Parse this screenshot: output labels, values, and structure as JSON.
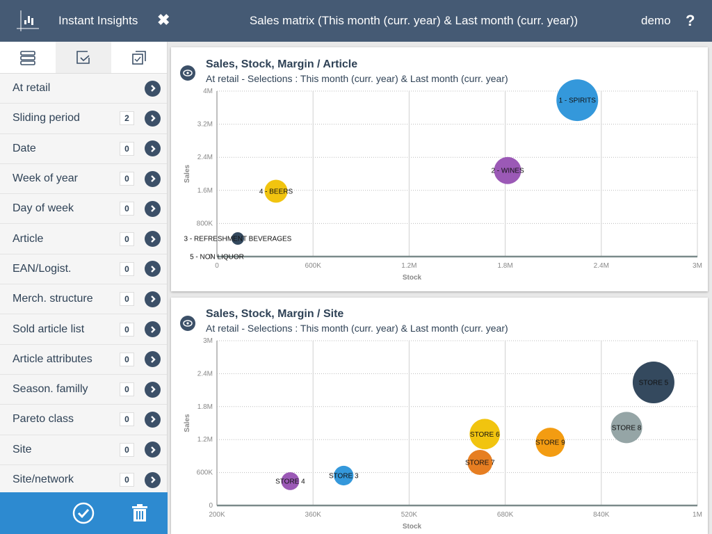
{
  "topbar": {
    "app_title": "Instant Insights",
    "close_symbol": "✖",
    "page_title": "Sales matrix (This month (curr. year) & Last month (curr. year))",
    "user": "demo",
    "help_symbol": "?",
    "logo_icon": "bar-chart-icon"
  },
  "sidebar": {
    "tabs": [
      {
        "name": "list",
        "icon": "stack-icon",
        "active": false
      },
      {
        "name": "selections",
        "icon": "checkbox-icon",
        "active": true
      },
      {
        "name": "multi-selections",
        "icon": "multi-checkbox-icon",
        "active": false
      }
    ],
    "filters": [
      {
        "label": "At retail",
        "count": null
      },
      {
        "label": "Sliding period",
        "count": "2"
      },
      {
        "label": "Date",
        "count": "0"
      },
      {
        "label": "Week of year",
        "count": "0"
      },
      {
        "label": "Day of week",
        "count": "0"
      },
      {
        "label": "Article",
        "count": "0"
      },
      {
        "label": "EAN/Logist.",
        "count": "0"
      },
      {
        "label": "Merch. structure",
        "count": "0"
      },
      {
        "label": "Sold article list",
        "count": "0"
      },
      {
        "label": "Article attributes",
        "count": "0"
      },
      {
        "label": "Season. familly",
        "count": "0"
      },
      {
        "label": "Pareto class",
        "count": "0"
      },
      {
        "label": "Site",
        "count": "0"
      },
      {
        "label": "Site/network",
        "count": "0"
      }
    ],
    "footer": {
      "confirm_icon": "check-circle-icon",
      "delete_icon": "trash-icon"
    }
  },
  "colors": {
    "topbar": "#455a74",
    "accent": "#2d8ad0",
    "dark": "#3c5068"
  },
  "chart_data": [
    {
      "type": "scatter",
      "title": "Sales, Stock, Margin / Article",
      "subtitle": "At retail - Selections : This month (curr. year) & Last month (curr. year)",
      "xlabel": "Stock",
      "ylabel": "Sales",
      "xlim": [
        0,
        3000000
      ],
      "ylim": [
        0,
        4000000
      ],
      "xticks": [
        "0",
        "600K",
        "1.2M",
        "1.8M",
        "2.4M",
        "3M"
      ],
      "yticks": [
        "0",
        "800K",
        "1.6M",
        "2.4M",
        "3.2M",
        "4M"
      ],
      "grid": true,
      "points": [
        {
          "label": "1 - SPIRITS",
          "x": 2250000,
          "y": 3780000,
          "size": 1.0,
          "color": "#3498db"
        },
        {
          "label": "2 - WINES",
          "x": 1815000,
          "y": 2080000,
          "size": 0.65,
          "color": "#9b59b6"
        },
        {
          "label": "3 - REFRESHMENT BEVERAGES",
          "x": 130000,
          "y": 437000,
          "size": 0.3,
          "color": "#34495e"
        },
        {
          "label": "4 - BEERS",
          "x": 369000,
          "y": 1580000,
          "size": 0.55,
          "color": "#f1c40f"
        },
        {
          "label": "5 - NON LIQUOR",
          "x": 0,
          "y": 0,
          "size": 0.0,
          "color": "#95a5a6"
        }
      ]
    },
    {
      "type": "scatter",
      "title": "Sales, Stock, Margin / Site",
      "subtitle": "At retail - Selections : This month (curr. year) & Last month (curr. year)",
      "xlabel": "Stock",
      "ylabel": "Sales",
      "xlim": [
        200000,
        1000000
      ],
      "ylim": [
        0,
        3000000
      ],
      "xticks": [
        "200K",
        "360K",
        "520K",
        "680K",
        "840K",
        "1M"
      ],
      "yticks": [
        "0",
        "600K",
        "1.2M",
        "1.8M",
        "2.4M",
        "3M"
      ],
      "grid": true,
      "points": [
        {
          "label": "STORE 3",
          "x": 411000,
          "y": 544000,
          "size": 0.47,
          "color": "#3498db"
        },
        {
          "label": "STORE 4",
          "x": 322000,
          "y": 443000,
          "size": 0.43,
          "color": "#9b59b6"
        },
        {
          "label": "STORE 5",
          "x": 927000,
          "y": 2240000,
          "size": 1.0,
          "color": "#34495e"
        },
        {
          "label": "STORE 6",
          "x": 646000,
          "y": 1300000,
          "size": 0.73,
          "color": "#f1c40f"
        },
        {
          "label": "STORE 7",
          "x": 638000,
          "y": 785000,
          "size": 0.6,
          "color": "#e67e22"
        },
        {
          "label": "STORE 8",
          "x": 882000,
          "y": 1420000,
          "size": 0.75,
          "color": "#95a5a6"
        },
        {
          "label": "STORE 9",
          "x": 755000,
          "y": 1150000,
          "size": 0.7,
          "color": "#f39c12"
        }
      ]
    }
  ]
}
